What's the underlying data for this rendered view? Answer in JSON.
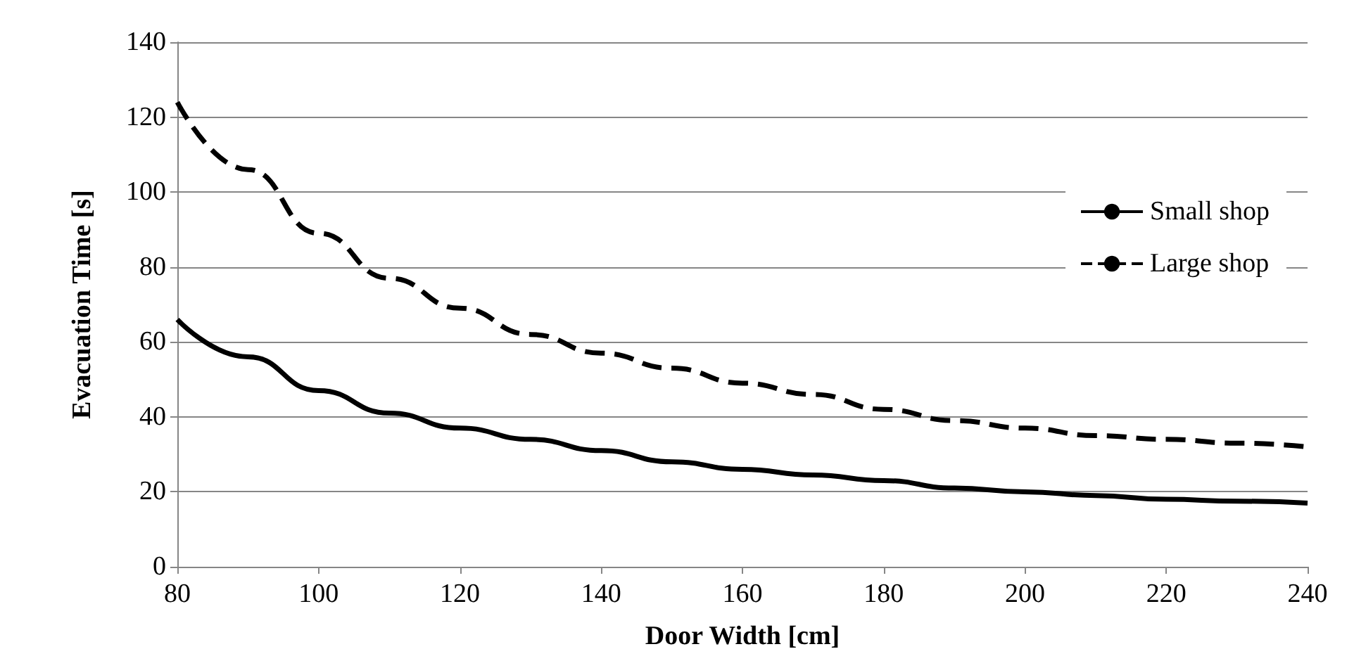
{
  "chart_data": {
    "type": "line",
    "xlabel": "Door Width [cm]",
    "ylabel": "Evacuation Time [s]",
    "x": [
      80,
      90,
      100,
      110,
      120,
      130,
      140,
      150,
      160,
      170,
      180,
      190,
      200,
      210,
      220,
      230,
      240
    ],
    "series": [
      {
        "name": "Small shop",
        "color": "#000000",
        "line_style": "solid",
        "values": [
          66,
          56,
          47,
          41,
          37,
          34,
          31,
          28,
          26,
          24.5,
          23,
          21,
          20,
          19,
          18,
          17.5,
          17
        ]
      },
      {
        "name": "Large shop",
        "color": "#000000",
        "line_style": "dashed",
        "values": [
          124,
          106,
          89,
          77,
          69,
          62,
          57,
          53,
          49,
          46,
          42,
          39,
          37,
          35,
          34,
          33,
          32
        ]
      }
    ],
    "xlim": [
      80,
      240
    ],
    "xticks": [
      80,
      100,
      120,
      140,
      160,
      180,
      200,
      220,
      240
    ],
    "ylim": [
      0,
      140
    ],
    "yticks": [
      0,
      20,
      40,
      60,
      80,
      100,
      120,
      140
    ],
    "grid": "y",
    "legend": "right",
    "marker": "none"
  }
}
